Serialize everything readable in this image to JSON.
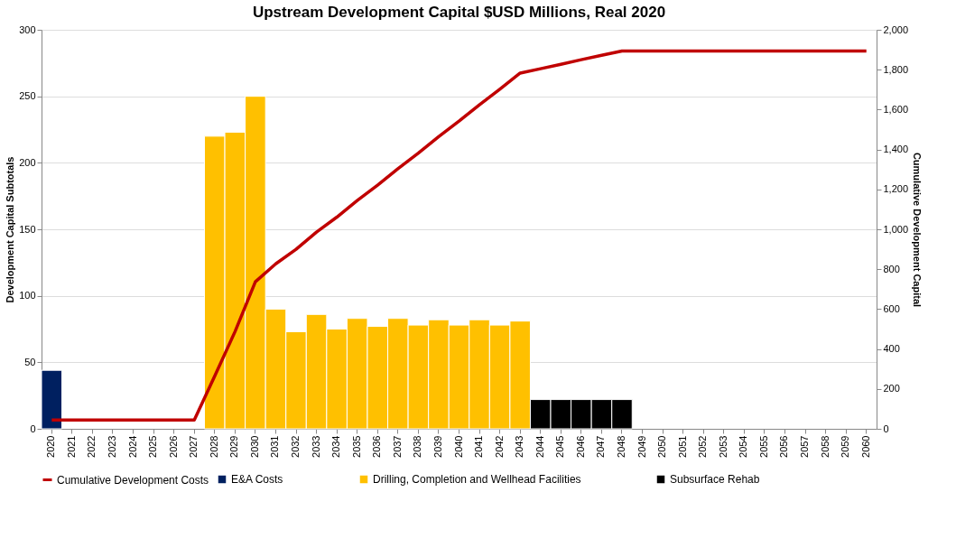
{
  "chart_data": {
    "type": "bar",
    "title": "Upstream Development Capital $USD Millions, Real 2020",
    "ylabel": "Development Capital Subtotals",
    "y2label": "Cumulative Development Capital",
    "categories": [
      "2020",
      "2021",
      "2022",
      "2023",
      "2024",
      "2025",
      "2026",
      "2027",
      "2028",
      "2029",
      "2030",
      "2031",
      "2032",
      "2033",
      "2034",
      "2035",
      "2036",
      "2037",
      "2038",
      "2039",
      "2040",
      "2041",
      "2042",
      "2043",
      "2044",
      "2045",
      "2046",
      "2047",
      "2048",
      "2049",
      "2050",
      "2051",
      "2052",
      "2053",
      "2054",
      "2055",
      "2056",
      "2057",
      "2058",
      "2059",
      "2060"
    ],
    "grid": "y",
    "legend": "bottom",
    "ylim": [
      0,
      300
    ],
    "yticks": [
      0,
      50,
      100,
      150,
      200,
      250,
      300
    ],
    "y2lim": [
      0,
      2000
    ],
    "y2ticks": [
      0,
      {
        "value": 200,
        "label": "200"
      },
      {
        "value": 400,
        "label": "400"
      },
      {
        "value": 600,
        "label": "600"
      },
      {
        "value": 800,
        "label": "800"
      },
      {
        "value": 1000,
        "label": "1,000"
      },
      {
        "value": 1200,
        "label": "1,200"
      },
      {
        "value": 1400,
        "label": "1,400"
      },
      {
        "value": 1600,
        "label": "1,600"
      },
      {
        "value": 1800,
        "label": "1,800"
      },
      {
        "value": 2000,
        "label": "2,000"
      }
    ],
    "series": [
      {
        "name": "E&A Costs",
        "color": "#002060",
        "values": [
          44,
          null,
          null,
          null,
          null,
          null,
          null,
          null,
          null,
          null,
          null,
          null,
          null,
          null,
          null,
          null,
          null,
          null,
          null,
          null,
          null,
          null,
          null,
          null,
          null,
          null,
          null,
          null,
          null,
          null,
          null,
          null,
          null,
          null,
          null,
          null,
          null,
          null,
          null,
          null,
          null
        ]
      },
      {
        "name": "Drilling, Completion and Wellhead Facilities",
        "color": "#ffc000",
        "values": [
          null,
          null,
          null,
          null,
          null,
          null,
          null,
          null,
          220,
          223,
          250,
          90,
          73,
          86,
          75,
          83,
          77,
          83,
          78,
          82,
          78,
          82,
          78,
          81,
          null,
          null,
          null,
          null,
          null,
          null,
          null,
          null,
          null,
          null,
          null,
          null,
          null,
          null,
          null,
          null,
          null
        ]
      },
      {
        "name": "Subsurface Rehab",
        "color": "#000000",
        "values": [
          null,
          null,
          null,
          null,
          null,
          null,
          null,
          null,
          null,
          null,
          null,
          null,
          null,
          null,
          null,
          null,
          null,
          null,
          null,
          null,
          null,
          null,
          null,
          null,
          22,
          22,
          22,
          22,
          22,
          null,
          null,
          null,
          null,
          null,
          null,
          null,
          null,
          null,
          null,
          null,
          null
        ]
      },
      {
        "name": "Cumulative Development Costs",
        "color": "#c00000",
        "type": "line",
        "axis": "y2",
        "values": [
          44,
          44,
          44,
          44,
          44,
          44,
          44,
          44,
          264,
          487,
          737,
          827,
          900,
          986,
          1061,
          1144,
          1221,
          1304,
          1382,
          1464,
          1542,
          1624,
          1702,
          1783,
          1805,
          1827,
          1850,
          1872,
          1894,
          1894,
          1894,
          1894,
          1894,
          1894,
          1894,
          1894,
          1894,
          1894,
          1894,
          1894,
          1894
        ]
      }
    ]
  }
}
